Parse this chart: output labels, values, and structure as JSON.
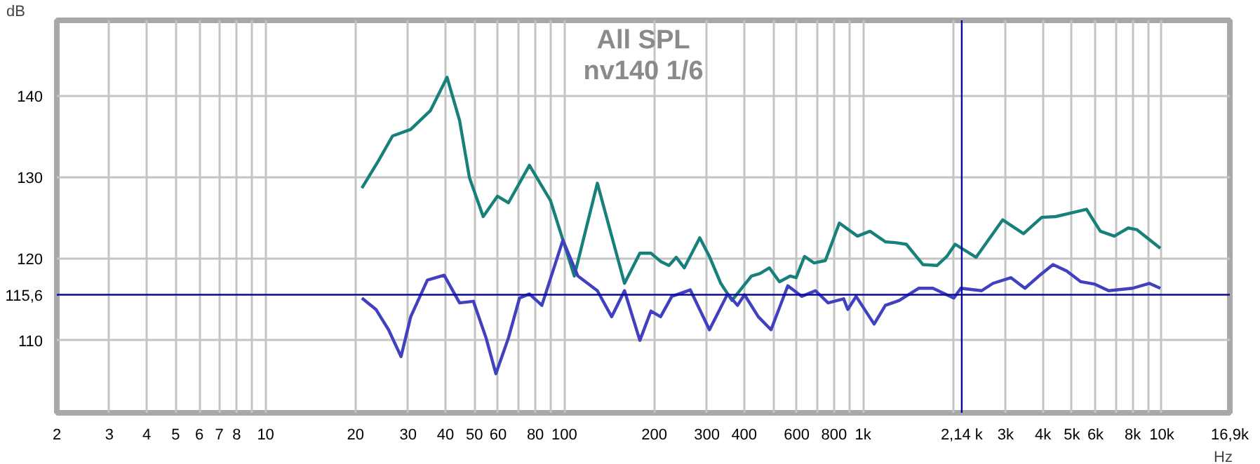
{
  "chart_data": {
    "type": "line",
    "title": "All SPL",
    "subtitle": "nv140 1/6",
    "xlabel": "Hz",
    "ylabel": "dB",
    "log": "x",
    "grid": true,
    "line_style": "solid",
    "marker": "none",
    "xlim": [
      2,
      16900
    ],
    "ylim": [
      101.1,
      149.3
    ],
    "xticks": [
      2,
      3,
      4,
      5,
      6,
      7,
      8,
      {
        "value": 9,
        "label": null
      },
      10,
      20,
      30,
      40,
      50,
      60,
      {
        "value": 70,
        "label": null
      },
      80,
      {
        "value": 90,
        "label": null
      },
      100,
      200,
      300,
      400,
      {
        "value": 500,
        "label": null
      },
      600,
      {
        "value": 700,
        "label": null
      },
      800,
      {
        "value": 900,
        "label": null
      },
      {
        "value": 1000,
        "label": "1k"
      },
      {
        "value": 2000,
        "label": null
      },
      {
        "value": 3000,
        "label": "3k"
      },
      {
        "value": 4000,
        "label": "4k"
      },
      {
        "value": 5000,
        "label": "5k"
      },
      {
        "value": 6000,
        "label": "6k"
      },
      {
        "value": 7000,
        "label": null
      },
      {
        "value": 8000,
        "label": "8k"
      },
      {
        "value": 9000,
        "label": null
      },
      {
        "value": 10000,
        "label": "10k"
      },
      {
        "value": 16900,
        "label": "16,9k"
      }
    ],
    "yticks": [
      110,
      120,
      130,
      140
    ],
    "ref_lines": [
      {
        "axis": "x",
        "value": 2140,
        "label": "2,14 k",
        "color": "#0a0a96"
      },
      {
        "axis": "y",
        "value": 115.6,
        "label": "115,6",
        "color": "#0a0a96"
      }
    ],
    "series": [
      {
        "color": "#17807a",
        "x": [
          21,
          23.9,
          26.6,
          30.6,
          35.6,
          40.5,
          44.6,
          48.1,
          53.5,
          59.7,
          65,
          76.4,
          89.8,
          108,
          129,
          159,
          179,
          195,
          210,
          224,
          237,
          252,
          284,
          306,
          334,
          364,
          423,
          451,
          486,
          525,
          571,
          597,
          637,
          686,
          748,
          833,
          958,
          1055,
          1188,
          1281,
          1396,
          1588,
          1770,
          1906,
          2034,
          2391,
          2933,
          3445,
          3963,
          4416,
          5598,
          6227,
          6937,
          7724,
          8244,
          9890
        ],
        "values": [
          128.7,
          132.1,
          135.1,
          135.9,
          138.2,
          142.3,
          137.0,
          130.0,
          125.2,
          127.7,
          126.9,
          131.5,
          127.2,
          117.9,
          129.3,
          117.0,
          120.7,
          120.7,
          119.7,
          119.2,
          120.2,
          118.9,
          122.6,
          120.3,
          117.0,
          114.9,
          117.9,
          118.2,
          118.9,
          117.2,
          117.9,
          117.7,
          120.3,
          119.5,
          119.8,
          124.4,
          122.8,
          123.4,
          122.1,
          122.0,
          121.8,
          119.3,
          119.2,
          120.3,
          121.8,
          120.2,
          124.8,
          123.1,
          125.1,
          125.2,
          126.1,
          123.4,
          122.8,
          123.8,
          123.6,
          121.3
        ]
      },
      {
        "color": "#4040c0",
        "x": [
          21,
          23.4,
          25.8,
          28.4,
          30.6,
          34.8,
          39.6,
          44.6,
          49.6,
          54.7,
          59,
          65,
          70.8,
          76.4,
          84.1,
          98.9,
          111,
          129,
          144,
          159,
          179,
          195,
          210,
          229,
          264,
          306,
          352,
          380,
          401,
          446,
          492,
          560,
          623,
          693,
          764,
          861,
          889,
          948,
          1089,
          1188,
          1322,
          1538,
          1713,
          2013,
          2125,
          2495,
          2722,
          3128,
          3483,
          3878,
          4324,
          4812,
          5358,
          5967,
          6643,
          7980,
          9080,
          9890
        ],
        "values": [
          115.2,
          113.8,
          111.3,
          108.0,
          112.9,
          117.4,
          118.0,
          114.6,
          114.8,
          110.3,
          105.9,
          110.3,
          115.2,
          115.7,
          114.3,
          122.3,
          117.9,
          116.1,
          112.9,
          116.1,
          110.0,
          113.6,
          112.9,
          115.4,
          116.2,
          111.3,
          115.7,
          114.3,
          115.6,
          112.9,
          111.3,
          116.7,
          115.4,
          116.1,
          114.6,
          115.1,
          113.8,
          115.4,
          112.0,
          114.3,
          114.9,
          116.4,
          116.4,
          115.2,
          116.4,
          116.1,
          117.0,
          117.7,
          116.4,
          117.9,
          119.3,
          118.5,
          117.2,
          116.9,
          116.1,
          116.4,
          117.0,
          116.4
        ]
      }
    ]
  }
}
